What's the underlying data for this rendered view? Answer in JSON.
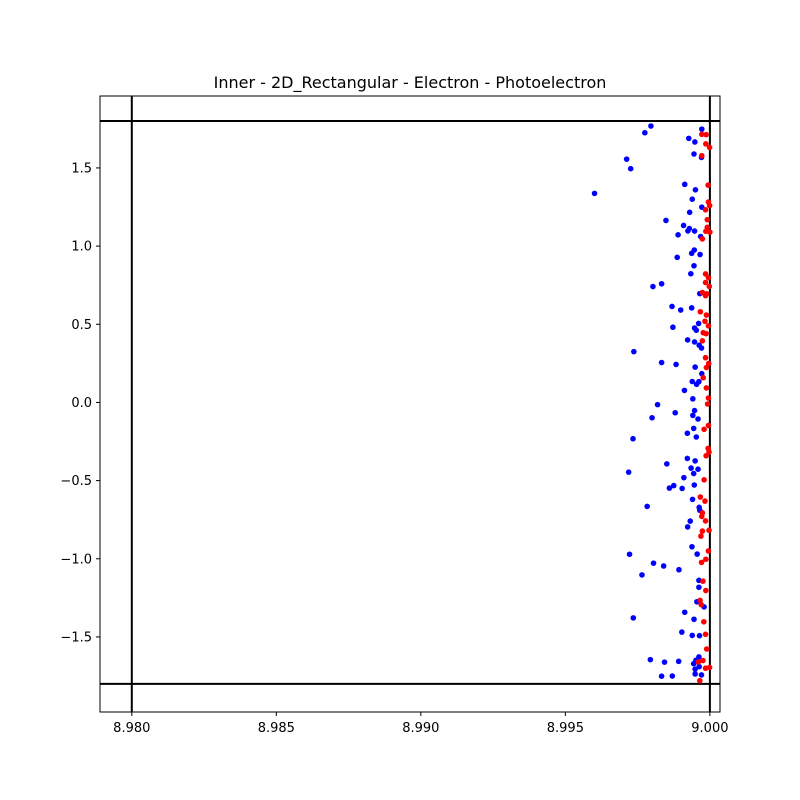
{
  "chart_data": {
    "type": "scatter",
    "title": "Inner - 2D_Rectangular - Electron - Photoelectron",
    "xlabel": "",
    "ylabel": "",
    "xlim": [
      8.9789,
      9.00035
    ],
    "ylim": [
      -1.98,
      1.96
    ],
    "xticks": [
      8.98,
      8.985,
      8.99,
      8.995,
      9.0
    ],
    "xtick_labels": [
      "8.980",
      "8.985",
      "8.990",
      "8.995",
      "9.000"
    ],
    "yticks": [
      -1.5,
      -1.0,
      -0.5,
      0.0,
      0.5,
      1.0,
      1.5
    ],
    "ytick_labels": [
      "−1.5",
      "−1.0",
      "−0.5",
      "0.0",
      "0.5",
      "1.0",
      "1.5"
    ],
    "grid": false,
    "legend": "none",
    "boundary_lines": {
      "vertical_x": [
        8.98,
        9.0
      ],
      "horizontal_y": [
        -1.8,
        1.8
      ],
      "color": "#000000"
    },
    "series": [
      {
        "color": "#0000ff",
        "points": [
          [
            8.99796,
            1.768
          ],
          [
            8.99775,
            1.725
          ],
          [
            8.99712,
            1.556
          ],
          [
            8.99726,
            1.495
          ],
          [
            8.99601,
            1.337
          ],
          [
            8.99927,
            1.689
          ],
          [
            8.99948,
            1.666
          ],
          [
            8.99945,
            1.589
          ],
          [
            8.99972,
            1.748
          ],
          [
            8.99971,
            1.567
          ],
          [
            8.99913,
            1.395
          ],
          [
            8.9995,
            1.36
          ],
          [
            8.99939,
            1.3
          ],
          [
            8.99972,
            1.249
          ],
          [
            8.9993,
            1.216
          ],
          [
            8.99848,
            1.164
          ],
          [
            8.99909,
            1.132
          ],
          [
            8.99929,
            1.112
          ],
          [
            8.99924,
            1.097
          ],
          [
            8.99947,
            1.096
          ],
          [
            8.9989,
            1.072
          ],
          [
            8.99968,
            1.061
          ],
          [
            8.99946,
            0.975
          ],
          [
            8.99937,
            0.954
          ],
          [
            8.99966,
            0.946
          ],
          [
            8.99887,
            0.928
          ],
          [
            8.99945,
            0.874
          ],
          [
            8.99934,
            0.823
          ],
          [
            8.99803,
            0.741
          ],
          [
            8.99833,
            0.759
          ],
          [
            8.99965,
            0.696
          ],
          [
            8.99869,
            0.614
          ],
          [
            8.99899,
            0.591
          ],
          [
            8.99937,
            0.605
          ],
          [
            8.99961,
            0.505
          ],
          [
            8.99947,
            0.476
          ],
          [
            8.99953,
            0.462
          ],
          [
            8.99872,
            0.481
          ],
          [
            8.99923,
            0.4
          ],
          [
            8.99947,
            0.387
          ],
          [
            8.99963,
            0.366
          ],
          [
            8.99971,
            0.348
          ],
          [
            8.99737,
            0.325
          ],
          [
            8.99833,
            0.255
          ],
          [
            8.99883,
            0.243
          ],
          [
            8.99949,
            0.226
          ],
          [
            8.99939,
            0.134
          ],
          [
            8.99962,
            0.133
          ],
          [
            8.99972,
            0.184
          ],
          [
            8.99954,
            0.116
          ],
          [
            8.99912,
            0.077
          ],
          [
            8.99941,
            0.023
          ],
          [
            8.99819,
            -0.014
          ],
          [
            8.998,
            -0.098
          ],
          [
            8.9988,
            -0.066
          ],
          [
            8.99947,
            -0.052
          ],
          [
            8.99959,
            -0.106
          ],
          [
            8.99941,
            -0.083
          ],
          [
            8.99944,
            -0.166
          ],
          [
            8.99922,
            -0.197
          ],
          [
            8.99953,
            -0.221
          ],
          [
            8.99734,
            -0.232
          ],
          [
            8.99922,
            -0.358
          ],
          [
            8.99949,
            -0.374
          ],
          [
            8.99851,
            -0.393
          ],
          [
            8.99935,
            -0.42
          ],
          [
            8.99959,
            -0.427
          ],
          [
            8.99944,
            -0.455
          ],
          [
            8.99719,
            -0.446
          ],
          [
            8.9991,
            -0.481
          ],
          [
            8.99946,
            -0.528
          ],
          [
            8.99875,
            -0.532
          ],
          [
            8.9986,
            -0.548
          ],
          [
            8.99904,
            -0.55
          ],
          [
            8.9994,
            -0.62
          ],
          [
            8.99963,
            -0.671
          ],
          [
            8.99783,
            -0.665
          ],
          [
            8.99965,
            -0.69
          ],
          [
            8.99932,
            -0.759
          ],
          [
            8.99923,
            -0.796
          ],
          [
            8.99938,
            -0.923
          ],
          [
            8.99722,
            -0.971
          ],
          [
            8.99956,
            -0.97
          ],
          [
            8.99805,
            -1.028
          ],
          [
            8.9984,
            -1.046
          ],
          [
            8.99893,
            -1.07
          ],
          [
            8.99765,
            -1.103
          ],
          [
            8.99962,
            -1.138
          ],
          [
            8.99962,
            -1.182
          ],
          [
            8.99955,
            -1.275
          ],
          [
            8.9998,
            -1.308
          ],
          [
            8.99913,
            -1.342
          ],
          [
            8.99945,
            -1.387
          ],
          [
            8.99735,
            -1.378
          ],
          [
            8.99903,
            -1.469
          ],
          [
            8.99964,
            -1.492
          ],
          [
            8.99939,
            -1.49
          ],
          [
            8.99962,
            -1.628
          ],
          [
            8.99952,
            -1.649
          ],
          [
            8.99794,
            -1.645
          ],
          [
            8.99843,
            -1.661
          ],
          [
            8.99892,
            -1.656
          ],
          [
            8.99944,
            -1.671
          ],
          [
            8.99963,
            -1.69
          ],
          [
            8.99949,
            -1.706
          ],
          [
            8.99949,
            -1.737
          ],
          [
            8.99833,
            -1.751
          ],
          [
            8.9987,
            -1.75
          ],
          [
            8.99971,
            -1.743
          ]
        ]
      },
      {
        "color": "#ff0000",
        "points": [
          [
            8.99972,
            1.715
          ],
          [
            8.99987,
            1.713
          ],
          [
            8.99986,
            1.654
          ],
          [
            8.99999,
            1.631
          ],
          [
            8.99972,
            1.578
          ],
          [
            8.99994,
            1.39
          ],
          [
            8.99995,
            1.282
          ],
          [
            8.99985,
            1.232
          ],
          [
            8.99999,
            1.259
          ],
          [
            8.99991,
            1.169
          ],
          [
            8.99991,
            1.12
          ],
          [
            8.99986,
            1.095
          ],
          [
            9.0,
            1.089
          ],
          [
            8.99974,
            1.046
          ],
          [
            8.99985,
            0.822
          ],
          [
            8.99995,
            0.798
          ],
          [
            8.99985,
            0.767
          ],
          [
            8.99998,
            0.742
          ],
          [
            8.99974,
            0.703
          ],
          [
            8.99989,
            0.695
          ],
          [
            8.99985,
            0.683
          ],
          [
            8.99967,
            0.58
          ],
          [
            8.99988,
            0.559
          ],
          [
            8.99983,
            0.519
          ],
          [
            8.99995,
            0.49
          ],
          [
            8.99977,
            0.446
          ],
          [
            8.99987,
            0.44
          ],
          [
            8.99974,
            0.394
          ],
          [
            8.99985,
            0.286
          ],
          [
            8.99996,
            0.249
          ],
          [
            8.99988,
            0.223
          ],
          [
            8.99977,
            0.158
          ],
          [
            8.99988,
            0.093
          ],
          [
            8.99995,
            0.028
          ],
          [
            8.99992,
            -0.01
          ],
          [
            8.99995,
            -0.147
          ],
          [
            8.9998,
            -0.172
          ],
          [
            8.99994,
            -0.294
          ],
          [
            8.99997,
            -0.318
          ],
          [
            8.99987,
            -0.341
          ],
          [
            8.9998,
            -0.495
          ],
          [
            8.99967,
            -0.605
          ],
          [
            8.99983,
            -0.631
          ],
          [
            8.99974,
            -0.706
          ],
          [
            8.99972,
            -0.729
          ],
          [
            8.99985,
            -0.758
          ],
          [
            8.99997,
            -0.818
          ],
          [
            8.99974,
            -0.823
          ],
          [
            8.99969,
            -0.855
          ],
          [
            8.99995,
            -0.95
          ],
          [
            8.99986,
            -1.003
          ],
          [
            8.99971,
            -1.023
          ],
          [
            8.99976,
            -1.143
          ],
          [
            8.99986,
            -1.203
          ],
          [
            8.99966,
            -1.266
          ],
          [
            8.9997,
            -1.293
          ],
          [
            8.99979,
            -1.403
          ],
          [
            8.99985,
            -1.483
          ],
          [
            8.99989,
            -1.577
          ],
          [
            8.99976,
            -1.651
          ],
          [
            8.9996,
            -1.66
          ],
          [
            8.99999,
            -1.695
          ],
          [
            8.99985,
            -1.7
          ],
          [
            8.99965,
            -1.78
          ]
        ]
      }
    ]
  }
}
